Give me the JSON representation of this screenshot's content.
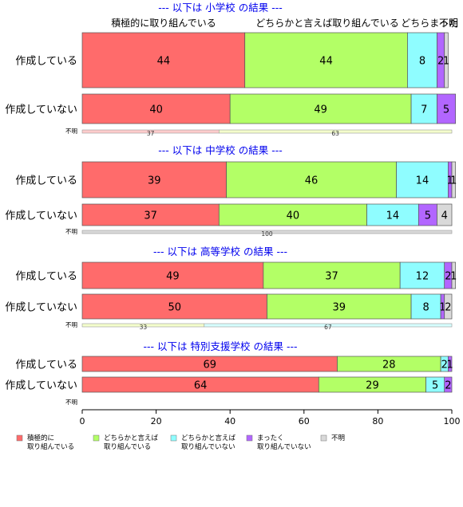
{
  "chart_data": {
    "type": "bar",
    "orientation": "horizontal",
    "stacked": true,
    "xlim": [
      0,
      100
    ],
    "xticks": [
      "0",
      "20",
      "40",
      "60",
      "80",
      "100"
    ],
    "grid": false,
    "legend_position": "bottom",
    "column_headers": [
      "積極的に取り組んでいる",
      "どちらかと言えば取り組んでいる",
      "どちらまった",
      "不明"
    ],
    "legend": [
      {
        "key": "c1",
        "label_lines": [
          "積極的に",
          "取り組んでいる"
        ]
      },
      {
        "key": "c2",
        "label_lines": [
          "どちらかと言えば",
          "取り組んでいる"
        ]
      },
      {
        "key": "c3",
        "label_lines": [
          "どちらかと言えば",
          "取り組んでいない"
        ]
      },
      {
        "key": "c4",
        "label_lines": [
          "まったく",
          "取り組んでいない"
        ]
      },
      {
        "key": "c5",
        "label_lines": [
          "不明"
        ]
      }
    ],
    "colors": {
      "c1": "#ff6b6b",
      "c2": "#b3ff66",
      "c3": "#8ffdff",
      "c4": "#b266ff",
      "c5": "#d9d9d9",
      "title": "#0000ee",
      "thin_a": "#ffcccc",
      "thin_b": "#f4ffcc",
      "thin_c": "#d6ffff"
    },
    "panels": [
      {
        "title": "--- 以下は 小学校 の結果 ---",
        "rows": [
          {
            "label": "作成している",
            "values": [
              44,
              44,
              8,
              2,
              1
            ]
          },
          {
            "label": "作成していない",
            "values": [
              40,
              49,
              7,
              5,
              0
            ]
          }
        ],
        "unknown": {
          "label": "不明",
          "values": [
            37,
            63
          ],
          "colors": [
            "thin_a",
            "thin_b"
          ]
        }
      },
      {
        "title": "--- 以下は 中学校 の結果 ---",
        "rows": [
          {
            "label": "作成している",
            "values": [
              39,
              46,
              14,
              1,
              1
            ]
          },
          {
            "label": "作成していない",
            "values": [
              37,
              40,
              14,
              5,
              4
            ]
          }
        ],
        "unknown": {
          "label": "不明",
          "values": [
            100
          ],
          "colors": [
            "c5"
          ]
        }
      },
      {
        "title": "--- 以下は 高等学校 の結果 ---",
        "rows": [
          {
            "label": "作成している",
            "values": [
              49,
              37,
              12,
              2,
              1
            ]
          },
          {
            "label": "作成していない",
            "values": [
              50,
              39,
              8,
              1,
              2
            ]
          }
        ],
        "unknown": {
          "label": "不明",
          "values": [
            33,
            67
          ],
          "colors": [
            "thin_b",
            "thin_c"
          ]
        }
      },
      {
        "title": "--- 以下は 特別支援学校 の結果 ---",
        "rows": [
          {
            "label": "作成している",
            "values": [
              69,
              28,
              2,
              1,
              0
            ]
          },
          {
            "label": "作成していない",
            "values": [
              64,
              29,
              5,
              2,
              0
            ]
          }
        ],
        "unknown": {
          "label": "不明",
          "values": [],
          "colors": []
        }
      }
    ]
  }
}
